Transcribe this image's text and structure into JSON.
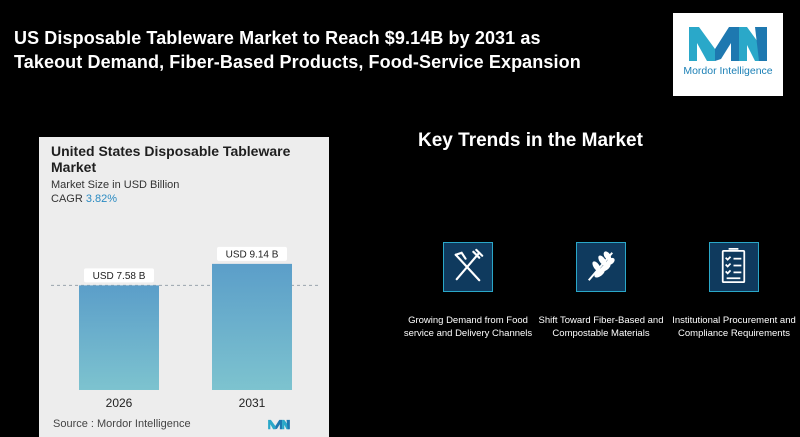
{
  "headline": {
    "line1": "US Disposable Tableware Market to Reach $9.14B by 2031 as",
    "line2": "Takeout Demand, Fiber-Based Products, Food-Service Expansion"
  },
  "logo": {
    "text": "Mordor Intelligence",
    "color": "#1a7fb5"
  },
  "card": {
    "title": "United States Disposable Tableware Market",
    "subtitle": "Market Size in USD Billion",
    "cagr_label": "CAGR",
    "cagr_value": "3.82%",
    "source": "Source : Mordor Intelligence"
  },
  "chart_data": {
    "type": "bar",
    "categories": [
      "2026",
      "2031"
    ],
    "values": [
      7.58,
      9.14
    ],
    "data_labels": [
      "USD 7.58 B",
      "USD 9.14 B"
    ],
    "ylim": [
      0,
      10
    ],
    "reference_line_value": 7.58,
    "bar_color_top": "#5b9ec9",
    "bar_color_bottom": "#7dc3cf",
    "grid": false
  },
  "trends": {
    "title": "Key Trends in the Market",
    "items": [
      {
        "icon": "fork-knife-icon",
        "label": "Growing Demand from Food service and Delivery Channels"
      },
      {
        "icon": "leaf-branch-icon",
        "label": "Shift Toward Fiber-Based and Compostable Materials"
      },
      {
        "icon": "checklist-icon",
        "label": "Institutional Procurement and Compliance Requirements"
      }
    ],
    "icon_border_color": "#2aa7c8",
    "icon_fill_color": "#0f3a5e"
  }
}
